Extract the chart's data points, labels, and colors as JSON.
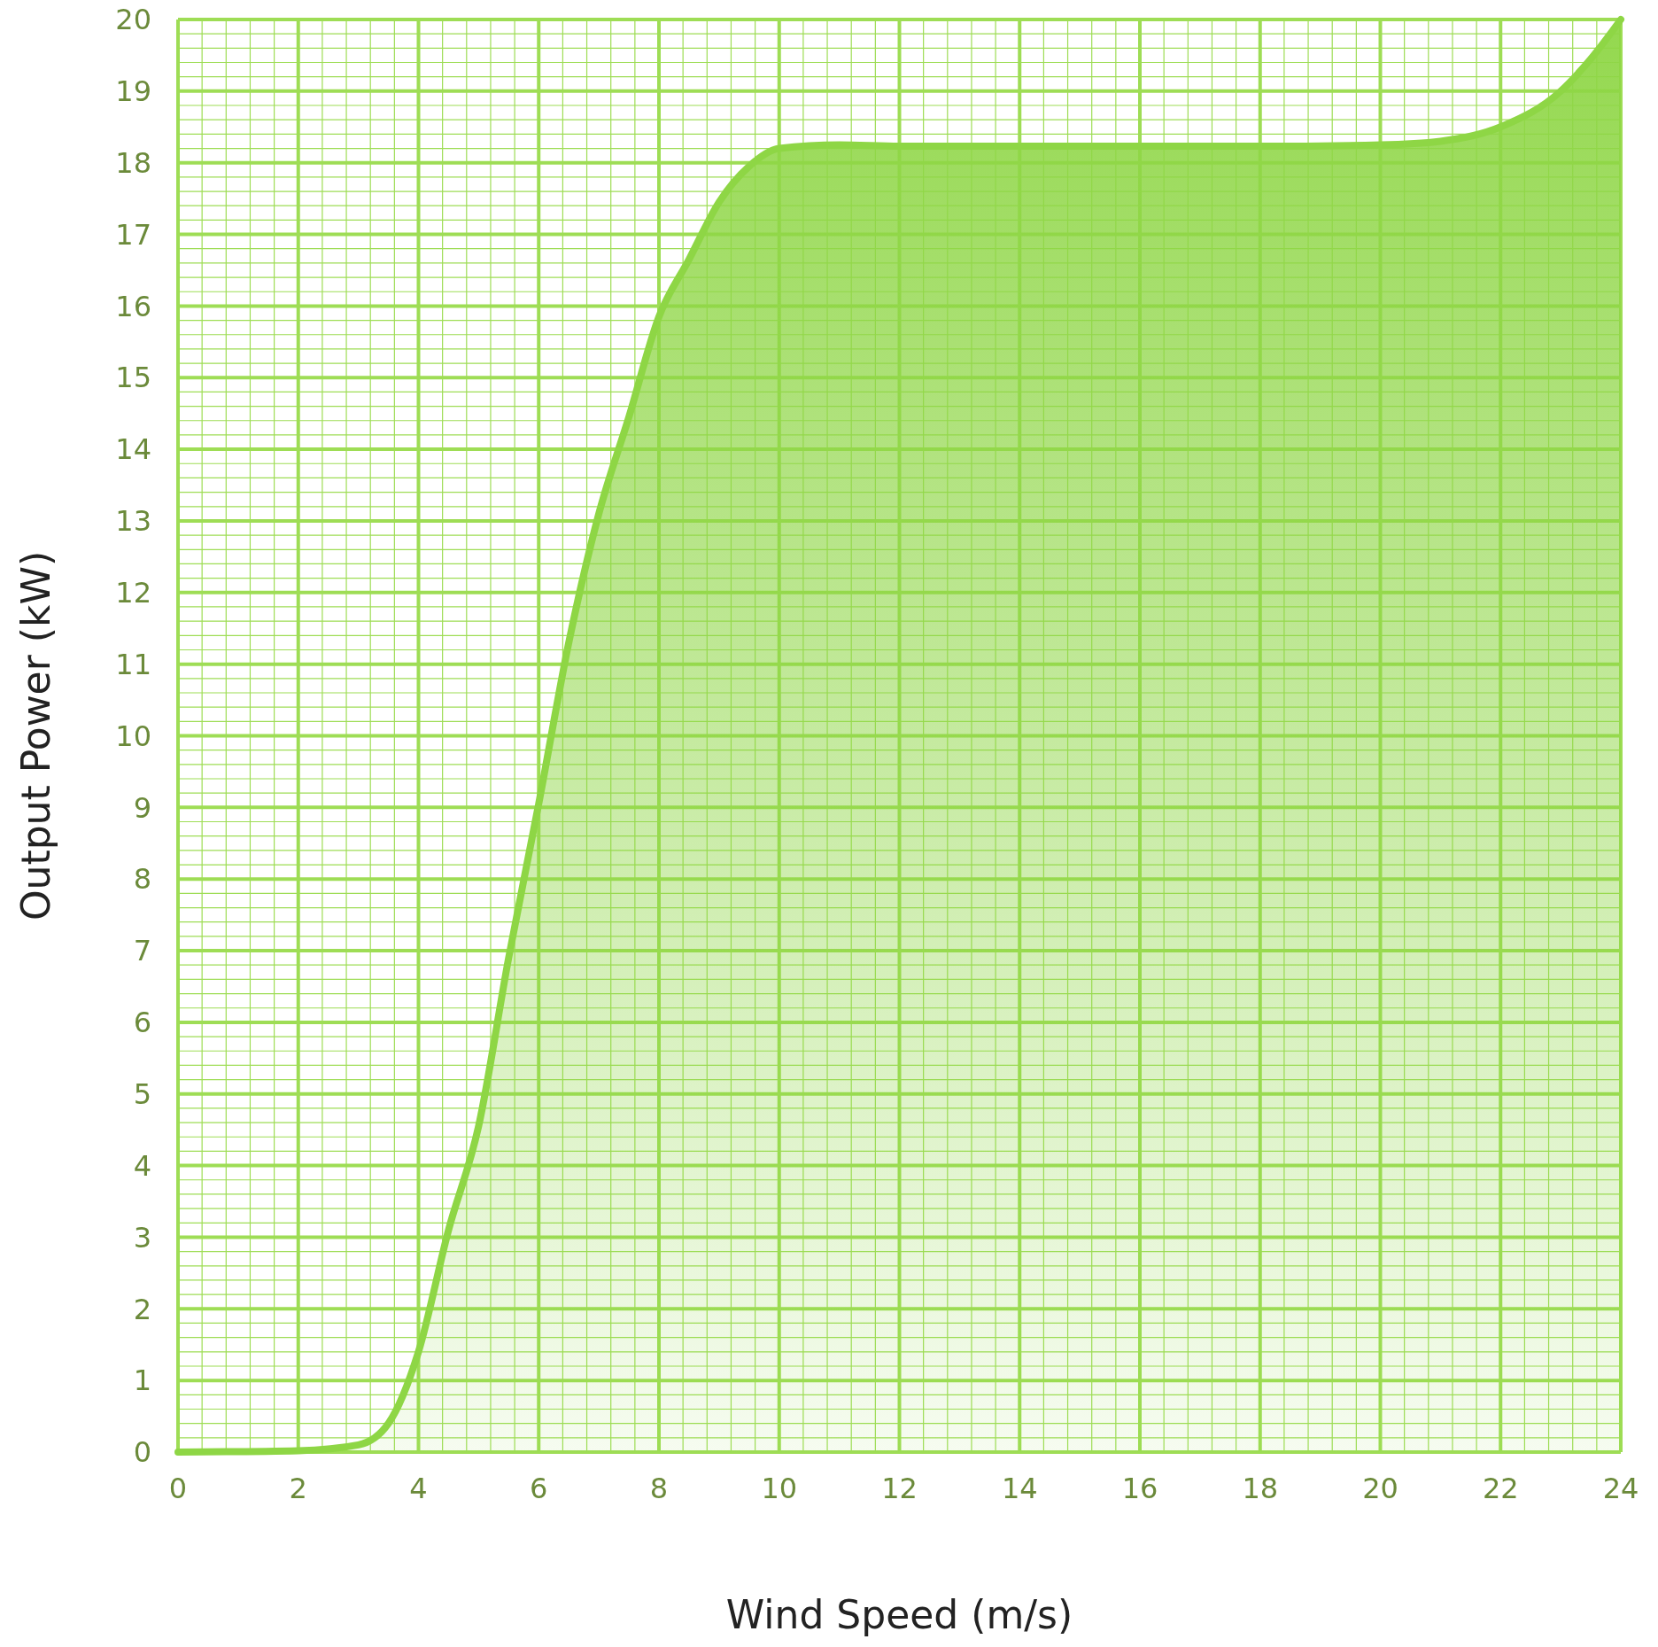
{
  "chart_data": {
    "type": "area",
    "xlabel": "Wind Speed (m/s)",
    "ylabel": "Output Power (kW)",
    "x": [
      0,
      2,
      3,
      3.5,
      4,
      4.5,
      5,
      5.5,
      6,
      6.5,
      7,
      7.5,
      8,
      8.5,
      9,
      9.5,
      10,
      11,
      12,
      14,
      16,
      18,
      20,
      21,
      22,
      23,
      23.5,
      24
    ],
    "series": [
      {
        "color": "#8ed645",
        "values": [
          0,
          0.02,
          0.1,
          0.4,
          1.4,
          3.1,
          4.55,
          6.9,
          9.05,
          11.3,
          13.1,
          14.45,
          15.85,
          16.65,
          17.45,
          17.95,
          18.2,
          18.25,
          18.23,
          18.23,
          18.23,
          18.23,
          18.25,
          18.3,
          18.5,
          19.0,
          19.45,
          20
        ]
      }
    ],
    "xlim": [
      0,
      24
    ],
    "xticks": [
      0,
      {
        "value": 0.4,
        "label": null
      },
      {
        "value": 0.8,
        "label": null
      },
      {
        "value": 1.2,
        "label": null
      },
      {
        "value": 1.6,
        "label": null
      },
      2,
      {
        "value": 2.4,
        "label": null
      },
      {
        "value": 2.8,
        "label": null
      },
      {
        "value": 3.2,
        "label": null
      },
      {
        "value": 3.6,
        "label": null
      },
      4,
      {
        "value": 4.4,
        "label": null
      },
      {
        "value": 4.8,
        "label": null
      },
      {
        "value": 5.2,
        "label": null
      },
      {
        "value": 5.6,
        "label": null
      },
      6,
      {
        "value": 6.4,
        "label": null
      },
      {
        "value": 6.8,
        "label": null
      },
      {
        "value": 7.2,
        "label": null
      },
      {
        "value": 7.6,
        "label": null
      },
      8,
      {
        "value": 8.4,
        "label": null
      },
      {
        "value": 8.8,
        "label": null
      },
      {
        "value": 9.2,
        "label": null
      },
      {
        "value": 9.6,
        "label": null
      },
      10,
      {
        "value": 10.4,
        "label": null
      },
      {
        "value": 10.8,
        "label": null
      },
      {
        "value": 11.2,
        "label": null
      },
      {
        "value": 11.6,
        "label": null
      },
      12,
      {
        "value": 12.4,
        "label": null
      },
      {
        "value": 12.8,
        "label": null
      },
      {
        "value": 13.2,
        "label": null
      },
      {
        "value": 13.6,
        "label": null
      },
      14,
      {
        "value": 14.4,
        "label": null
      },
      {
        "value": 14.8,
        "label": null
      },
      {
        "value": 15.2,
        "label": null
      },
      {
        "value": 15.6,
        "label": null
      },
      16,
      {
        "value": 16.4,
        "label": null
      },
      {
        "value": 16.8,
        "label": null
      },
      {
        "value": 17.2,
        "label": null
      },
      {
        "value": 17.6,
        "label": null
      },
      18,
      {
        "value": 18.4,
        "label": null
      },
      {
        "value": 18.8,
        "label": null
      },
      {
        "value": 19.2,
        "label": null
      },
      {
        "value": 19.6,
        "label": null
      },
      20,
      {
        "value": 20.4,
        "label": null
      },
      {
        "value": 20.8,
        "label": null
      },
      {
        "value": 21.2,
        "label": null
      },
      {
        "value": 21.6,
        "label": null
      },
      22,
      {
        "value": 22.4,
        "label": null
      },
      {
        "value": 22.8,
        "label": null
      },
      {
        "value": 23.2,
        "label": null
      },
      {
        "value": 23.6,
        "label": null
      },
      24
    ],
    "ylim": [
      0,
      20
    ],
    "yticks": [
      0,
      {
        "value": 0.2,
        "label": null
      },
      {
        "value": 0.4,
        "label": null
      },
      {
        "value": 0.6,
        "label": null
      },
      {
        "value": 0.8,
        "label": null
      },
      1,
      {
        "value": 1.2,
        "label": null
      },
      {
        "value": 1.4,
        "label": null
      },
      {
        "value": 1.6,
        "label": null
      },
      {
        "value": 1.8,
        "label": null
      },
      2,
      {
        "value": 2.2,
        "label": null
      },
      {
        "value": 2.4,
        "label": null
      },
      {
        "value": 2.6,
        "label": null
      },
      {
        "value": 2.8,
        "label": null
      },
      3,
      {
        "value": 3.2,
        "label": null
      },
      {
        "value": 3.4,
        "label": null
      },
      {
        "value": 3.6,
        "label": null
      },
      {
        "value": 3.8,
        "label": null
      },
      4,
      {
        "value": 4.2,
        "label": null
      },
      {
        "value": 4.4,
        "label": null
      },
      {
        "value": 4.6,
        "label": null
      },
      {
        "value": 4.8,
        "label": null
      },
      5,
      {
        "value": 5.2,
        "label": null
      },
      {
        "value": 5.4,
        "label": null
      },
      {
        "value": 5.6,
        "label": null
      },
      {
        "value": 5.8,
        "label": null
      },
      6,
      {
        "value": 6.2,
        "label": null
      },
      {
        "value": 6.4,
        "label": null
      },
      {
        "value": 6.6,
        "label": null
      },
      {
        "value": 6.8,
        "label": null
      },
      7,
      {
        "value": 7.2,
        "label": null
      },
      {
        "value": 7.4,
        "label": null
      },
      {
        "value": 7.6,
        "label": null
      },
      {
        "value": 7.8,
        "label": null
      },
      8,
      {
        "value": 8.2,
        "label": null
      },
      {
        "value": 8.4,
        "label": null
      },
      {
        "value": 8.6,
        "label": null
      },
      {
        "value": 8.8,
        "label": null
      },
      9,
      {
        "value": 9.2,
        "label": null
      },
      {
        "value": 9.4,
        "label": null
      },
      {
        "value": 9.6,
        "label": null
      },
      {
        "value": 9.8,
        "label": null
      },
      10,
      {
        "value": 10.2,
        "label": null
      },
      {
        "value": 10.4,
        "label": null
      },
      {
        "value": 10.6,
        "label": null
      },
      {
        "value": 10.8,
        "label": null
      },
      11,
      {
        "value": 11.2,
        "label": null
      },
      {
        "value": 11.4,
        "label": null
      },
      {
        "value": 11.6,
        "label": null
      },
      {
        "value": 11.8,
        "label": null
      },
      12,
      {
        "value": 12.2,
        "label": null
      },
      {
        "value": 12.4,
        "label": null
      },
      {
        "value": 12.6,
        "label": null
      },
      {
        "value": 12.8,
        "label": null
      },
      13,
      {
        "value": 13.2,
        "label": null
      },
      {
        "value": 13.4,
        "label": null
      },
      {
        "value": 13.6,
        "label": null
      },
      {
        "value": 13.8,
        "label": null
      },
      14,
      {
        "value": 14.2,
        "label": null
      },
      {
        "value": 14.4,
        "label": null
      },
      {
        "value": 14.6,
        "label": null
      },
      {
        "value": 14.8,
        "label": null
      },
      15,
      {
        "value": 15.2,
        "label": null
      },
      {
        "value": 15.4,
        "label": null
      },
      {
        "value": 15.6,
        "label": null
      },
      {
        "value": 15.8,
        "label": null
      },
      16,
      {
        "value": 16.2,
        "label": null
      },
      {
        "value": 16.4,
        "label": null
      },
      {
        "value": 16.6,
        "label": null
      },
      {
        "value": 16.8,
        "label": null
      },
      17,
      {
        "value": 17.2,
        "label": null
      },
      {
        "value": 17.4,
        "label": null
      },
      {
        "value": 17.6,
        "label": null
      },
      {
        "value": 17.8,
        "label": null
      },
      18,
      {
        "value": 18.2,
        "label": null
      },
      {
        "value": 18.4,
        "label": null
      },
      {
        "value": 18.6,
        "label": null
      },
      {
        "value": 18.8,
        "label": null
      },
      19,
      {
        "value": 19.2,
        "label": null
      },
      {
        "value": 19.4,
        "label": null
      },
      {
        "value": 19.6,
        "label": null
      },
      {
        "value": 19.8,
        "label": null
      },
      20
    ],
    "grid": true
  }
}
